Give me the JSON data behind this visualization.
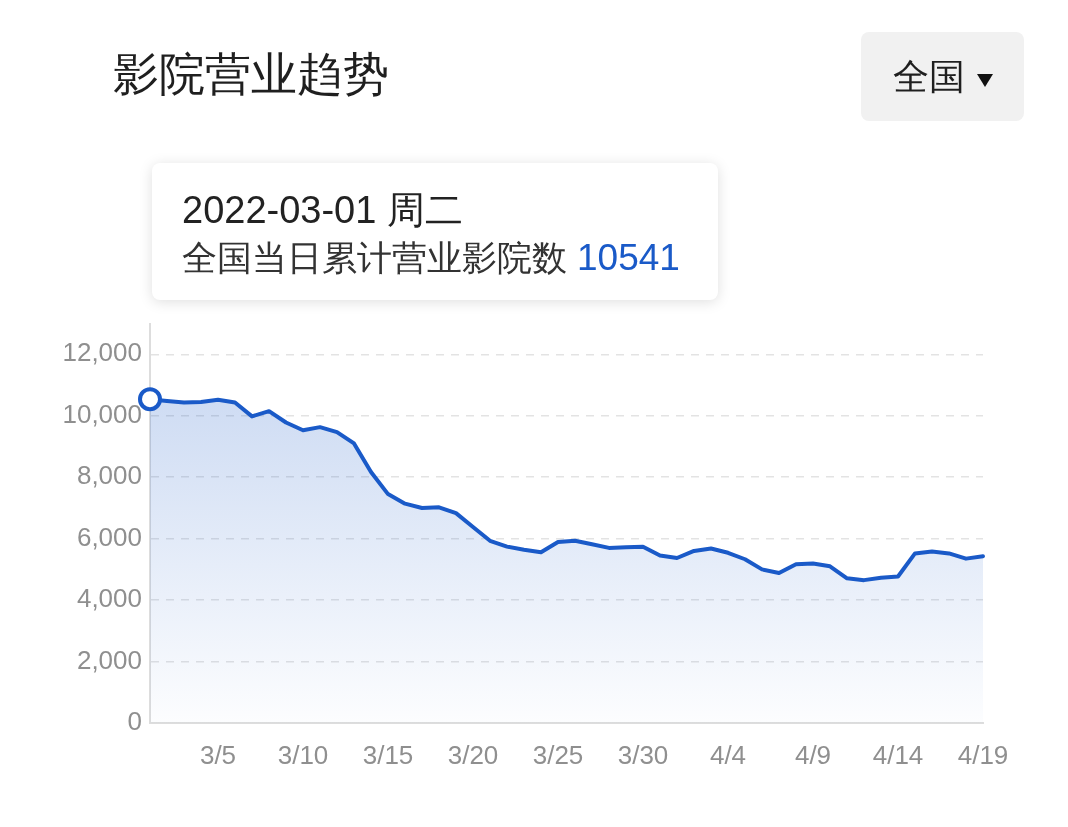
{
  "chart_data": {
    "type": "area",
    "title": "影院营业趋势",
    "x": [
      "2022-03-01",
      "2022-03-02",
      "2022-03-03",
      "2022-03-04",
      "2022-03-05",
      "2022-03-06",
      "2022-03-07",
      "2022-03-08",
      "2022-03-09",
      "2022-03-10",
      "2022-03-11",
      "2022-03-12",
      "2022-03-13",
      "2022-03-14",
      "2022-03-15",
      "2022-03-16",
      "2022-03-17",
      "2022-03-18",
      "2022-03-19",
      "2022-03-20",
      "2022-03-21",
      "2022-03-22",
      "2022-03-23",
      "2022-03-24",
      "2022-03-25",
      "2022-03-26",
      "2022-03-27",
      "2022-03-28",
      "2022-03-29",
      "2022-03-30",
      "2022-03-31",
      "2022-04-01",
      "2022-04-02",
      "2022-04-03",
      "2022-04-04",
      "2022-04-05",
      "2022-04-06",
      "2022-04-07",
      "2022-04-08",
      "2022-04-09",
      "2022-04-10",
      "2022-04-11",
      "2022-04-12",
      "2022-04-13",
      "2022-04-14",
      "2022-04-15",
      "2022-04-16",
      "2022-04-17",
      "2022-04-18",
      "2022-04-19"
    ],
    "series": [
      {
        "color": "#1a5ac8",
        "values": [
          10541,
          10480,
          10430,
          10450,
          10520,
          10430,
          9980,
          10150,
          9780,
          9530,
          9630,
          9470,
          9100,
          8170,
          7450,
          7140,
          7000,
          7020,
          6830,
          6380,
          5930,
          5740,
          5640,
          5560,
          5890,
          5930,
          5820,
          5700,
          5720,
          5740,
          5450,
          5370,
          5600,
          5680,
          5540,
          5330,
          5000,
          4880,
          5170,
          5190,
          5100,
          4710,
          4650,
          4730,
          4770,
          5520,
          5580,
          5520,
          5350,
          5430
        ]
      },
      {
        "type": "scatter",
        "x": [
          "2022-03-01"
        ],
        "values": [
          10541
        ],
        "color": "#1a5ac8",
        "marker": "circle"
      }
    ],
    "xlim": [
      "2022-03-01",
      "2022-04-19"
    ],
    "xticks": [
      {
        "value": "2022-03-05",
        "label": "3/5"
      },
      {
        "value": "2022-03-10",
        "label": "3/10"
      },
      {
        "value": "2022-03-15",
        "label": "3/15"
      },
      {
        "value": "2022-03-20",
        "label": "3/20"
      },
      {
        "value": "2022-03-25",
        "label": "3/25"
      },
      {
        "value": "2022-03-30",
        "label": "3/30"
      },
      {
        "value": "2022-04-04",
        "label": "4/4"
      },
      {
        "value": "2022-04-09",
        "label": "4/9"
      },
      {
        "value": "2022-04-14",
        "label": "4/14"
      },
      {
        "value": "2022-04-19",
        "label": "4/19"
      }
    ],
    "ylim": [
      0,
      13000
    ],
    "yticks": [
      0,
      {
        "value": 2000,
        "label": "2,000"
      },
      {
        "value": 4000,
        "label": "4,000"
      },
      {
        "value": 6000,
        "label": "6,000"
      },
      {
        "value": 8000,
        "label": "8,000"
      },
      {
        "value": 10000,
        "label": "10,000"
      },
      {
        "value": 12000,
        "label": "12,000"
      }
    ],
    "grid": "y",
    "marker": "none",
    "annotations": [
      "2022-03-01 周二",
      "全国当日累计营业影院数",
      "10541",
      "全国"
    ]
  }
}
